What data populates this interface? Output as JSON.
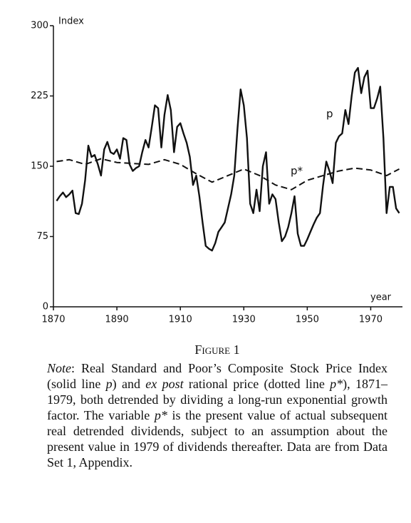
{
  "chart_data": {
    "type": "line",
    "y_label": "Index",
    "x_label": "year",
    "annotations": [
      "p",
      "p*"
    ],
    "xlim": [
      1870,
      1980
    ],
    "xticks": [
      1870,
      1890,
      1910,
      1930,
      1950,
      1970
    ],
    "ylim": [
      0,
      300
    ],
    "yticks": [
      0,
      75,
      150,
      225,
      300
    ],
    "series": [
      {
        "name": "p",
        "color": "#111111",
        "style": "solid",
        "x": [
          1871,
          1872,
          1873,
          1874,
          1875,
          1876,
          1877,
          1878,
          1879,
          1880,
          1881,
          1882,
          1883,
          1884,
          1885,
          1886,
          1887,
          1888,
          1889,
          1890,
          1891,
          1892,
          1893,
          1894,
          1895,
          1896,
          1897,
          1898,
          1899,
          1900,
          1901,
          1902,
          1903,
          1904,
          1905,
          1906,
          1907,
          1908,
          1909,
          1910,
          1911,
          1912,
          1913,
          1914,
          1915,
          1916,
          1917,
          1918,
          1919,
          1920,
          1921,
          1922,
          1923,
          1924,
          1925,
          1926,
          1927,
          1928,
          1929,
          1930,
          1931,
          1932,
          1933,
          1934,
          1935,
          1936,
          1937,
          1938,
          1939,
          1940,
          1941,
          1942,
          1943,
          1944,
          1945,
          1946,
          1947,
          1948,
          1949,
          1950,
          1951,
          1952,
          1953,
          1954,
          1955,
          1956,
          1957,
          1958,
          1959,
          1960,
          1961,
          1962,
          1963,
          1964,
          1965,
          1966,
          1967,
          1968,
          1969,
          1970,
          1971,
          1972,
          1973,
          1974,
          1975,
          1976,
          1977,
          1978,
          1979
        ],
        "values": [
          113,
          118,
          122,
          117,
          120,
          124,
          100,
          99,
          110,
          135,
          172,
          160,
          162,
          152,
          140,
          168,
          176,
          165,
          163,
          168,
          158,
          180,
          178,
          152,
          145,
          148,
          150,
          165,
          178,
          170,
          192,
          215,
          212,
          170,
          205,
          226,
          210,
          165,
          192,
          196,
          185,
          175,
          160,
          130,
          140,
          118,
          90,
          65,
          62,
          60,
          68,
          80,
          85,
          90,
          105,
          120,
          140,
          190,
          232,
          215,
          180,
          110,
          100,
          125,
          102,
          150,
          165,
          110,
          120,
          115,
          90,
          70,
          75,
          85,
          100,
          118,
          78,
          65,
          65,
          72,
          80,
          88,
          95,
          100,
          130,
          155,
          145,
          132,
          175,
          182,
          185,
          210,
          195,
          225,
          250,
          255,
          228,
          245,
          252,
          212,
          212,
          222,
          235,
          180,
          100,
          128,
          128,
          105,
          100
        ]
      },
      {
        "name": "p*",
        "color": "#111111",
        "style": "dashed",
        "x": [
          1871,
          1875,
          1880,
          1885,
          1890,
          1895,
          1900,
          1905,
          1910,
          1915,
          1920,
          1925,
          1930,
          1935,
          1940,
          1945,
          1950,
          1955,
          1960,
          1965,
          1970,
          1975,
          1979
        ],
        "values": [
          155,
          157,
          152,
          158,
          154,
          153,
          152,
          157,
          152,
          142,
          133,
          140,
          147,
          140,
          130,
          125,
          135,
          140,
          145,
          148,
          146,
          140,
          147
        ]
      }
    ]
  },
  "caption": {
    "figure": "Figure 1",
    "note": [
      {
        "text": "Note",
        "italic": true
      },
      {
        "text": ": Real Standard and Poor’s Composite Stock Price Index (solid line ",
        "italic": false
      },
      {
        "text": "p",
        "italic": true
      },
      {
        "text": ") and ",
        "italic": false
      },
      {
        "text": "ex post",
        "italic": true
      },
      {
        "text": " rational price (dotted line ",
        "italic": false
      },
      {
        "text": "p*",
        "italic": true
      },
      {
        "text": "), 1871–1979, both detrended by dividing a long-run exponential growth factor. The variable ",
        "italic": false
      },
      {
        "text": "p*",
        "italic": true
      },
      {
        "text": " is the present value of actual subsequent real detrended dividends, subject to an assumption about the present value in 1979 of dividends thereafter. Data are from Data Set 1, Appendix.",
        "italic": false
      }
    ]
  }
}
